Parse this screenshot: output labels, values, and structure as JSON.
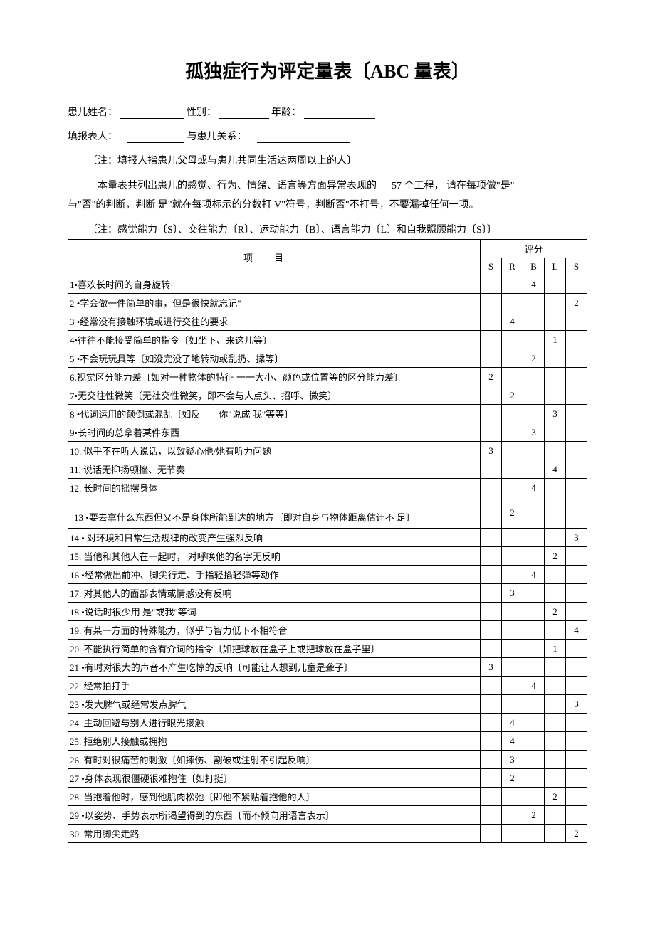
{
  "title": "孤独症行为评定量表〔ABC 量表〕",
  "form": {
    "child_name_label": "患儿姓名：",
    "gender_label": "性别：",
    "age_label": "年龄：",
    "reporter_label": "填报表人：",
    "relation_label": "与患儿关系：",
    "note": "〔注：填报人指患儿父母或与患儿共同生活达两周以上的人〕",
    "instruction_1": "本量表共列出患儿的感觉、行为、情绪、语言等方面异常表现的",
    "instruction_count": "57 个工程，",
    "instruction_2": "请在每项做\"是\"",
    "instruction_3": "与\"否\"的判断，判断 是\"就在每项标示的分数打 V\"符号，判断否\"不打号，不要漏掉任何一项。",
    "legend": "〔注：感觉能力〔S〕、交往能力〔R〕、运动能力〔B〕、语言能力〔L〕和自我照顾能力〔S〕〕"
  },
  "table": {
    "item_header": "项目",
    "score_header": "评分",
    "columns": [
      "S",
      "R",
      "B",
      "L",
      "S"
    ],
    "rows": [
      {
        "text": "1•喜欢长时间的自身旋转",
        "scores": [
          "",
          "",
          "4",
          "",
          ""
        ]
      },
      {
        "text": "2 •学会做一件简单的事，但是很快就忘记\"",
        "scores": [
          "",
          "",
          "",
          "",
          "2"
        ]
      },
      {
        "text": "3 •经常没有接触环境或进行交往的要求",
        "scores": [
          "",
          "4",
          "",
          "",
          ""
        ]
      },
      {
        "text": "4•往往不能接受简单的指令〔如坐下、来这儿等〕",
        "scores": [
          "",
          "",
          "",
          "1",
          ""
        ]
      },
      {
        "text": "5 •不会玩玩具等〔如没完没了地转动或乱扔、揉等〕",
        "scores": [
          "",
          "",
          "2",
          "",
          ""
        ]
      },
      {
        "text": "6.视觉区分能力差〔如对一种物体的特征 一一大小、颜色或位置等的区分能力差〕",
        "scores": [
          "2",
          "",
          "",
          "",
          ""
        ]
      },
      {
        "text": "7•无交往性微笑〔无社交性微笑，即不会与人点头、招呼、微笑〕",
        "scores": [
          "",
          "2",
          "",
          "",
          ""
        ]
      },
      {
        "text": "8 •代词运用的颠倒或混乱〔如反　　你\"说成 我\"等等〕",
        "scores": [
          "",
          "",
          "",
          "3",
          ""
        ]
      },
      {
        "text": "9•长时间的总拿着某件东西",
        "scores": [
          "",
          "",
          "3",
          "",
          ""
        ]
      },
      {
        "text": "10. 似乎不在听人说话，以致疑心他/她有听力问题",
        "scores": [
          "3",
          "",
          "",
          "",
          ""
        ]
      },
      {
        "text": "11. 说话无抑扬顿挫、无节奏",
        "scores": [
          "",
          "",
          "",
          "4",
          ""
        ]
      },
      {
        "text": "12. 长时间的摇摆身体",
        "scores": [
          "",
          "",
          "4",
          "",
          ""
        ]
      },
      {
        "text": "13 •要去拿什么东西但又不是身体所能到达的地方〔即对自身与物体距离估计不 足〕",
        "scores": [
          "",
          "2",
          "",
          "",
          ""
        ],
        "tall": true
      },
      {
        "text": "14 • 对环境和日常生活规律的改变产生强烈反响",
        "scores": [
          "",
          "",
          "",
          "",
          "3"
        ]
      },
      {
        "text": "15. 当他和其他人在一起时， 对呼唤他的名字无反响",
        "scores": [
          "",
          "",
          "",
          "2",
          ""
        ]
      },
      {
        "text": "16 •经常做出前冲、脚尖行走、手指轻掐轻弹等动作",
        "scores": [
          "",
          "",
          "4",
          "",
          ""
        ]
      },
      {
        "text": "17. 对其他人的面部表情或情感没有反响",
        "scores": [
          "",
          "3",
          "",
          "",
          ""
        ]
      },
      {
        "text": "18 •说话时很少用 是\"或我\"等词",
        "scores": [
          "",
          "",
          "",
          "2",
          ""
        ]
      },
      {
        "text": "19. 有某一方面的特殊能力，似乎与智力低下不相符合",
        "scores": [
          "",
          "",
          "",
          "",
          "4"
        ]
      },
      {
        "text": "20. 不能执行简单的含有介词的指令〔如把球放在盒子上或把球放在盒子里〕",
        "scores": [
          "",
          "",
          "",
          "1",
          ""
        ]
      },
      {
        "text": "21 •有时对很大的声音不产生吃惊的反响〔可能让人想到儿童是聋子〕",
        "scores": [
          "3",
          "",
          "",
          "",
          ""
        ]
      },
      {
        "text": "22. 经常拍打手",
        "scores": [
          "",
          "",
          "4",
          "",
          ""
        ]
      },
      {
        "text": "23 •发大脾气或经常发点脾气",
        "scores": [
          "",
          "",
          "",
          "",
          "3"
        ]
      },
      {
        "text": "24. 主动回避与别人进行眼光接触",
        "scores": [
          "",
          "4",
          "",
          "",
          ""
        ]
      },
      {
        "text": "25. 拒绝别人接触或拥抱",
        "scores": [
          "",
          "4",
          "",
          "",
          ""
        ]
      },
      {
        "text": "26. 有时对很痛苦的刺激〔如摔伤、割破或注射不引起反响〕",
        "scores": [
          "",
          "3",
          "",
          "",
          ""
        ]
      },
      {
        "text": "27 •身体表现很僵硬很难抱住〔如打挺〕",
        "scores": [
          "",
          "2",
          "",
          "",
          ""
        ]
      },
      {
        "text": "28. 当抱着他时，感到他肌肉松弛〔即他不紧贴着抱他的人〕",
        "scores": [
          "",
          "",
          "",
          "2",
          ""
        ]
      },
      {
        "text": "29 •以姿势、手势表示所渴望得到的东西〔而不倾向用语言表示〕",
        "scores": [
          "",
          "",
          "2",
          "",
          ""
        ]
      },
      {
        "text": "30. 常用脚尖走路",
        "scores": [
          "",
          "",
          "",
          "",
          "2"
        ]
      }
    ]
  }
}
